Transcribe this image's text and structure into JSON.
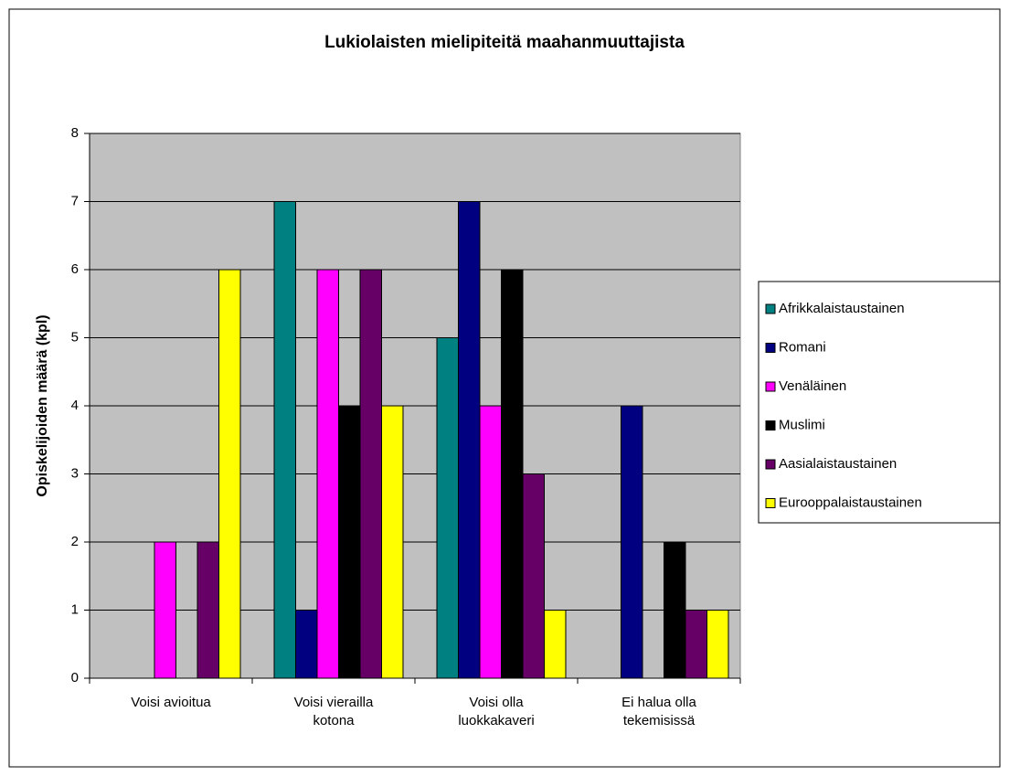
{
  "chart_data": {
    "type": "bar",
    "title": "Lukiolaisten mielipiteitä maahanmuuttajista",
    "y_label": "Opiskelijoiden määrä (kpl)",
    "categories": [
      "Voisi avioitua",
      "Voisi vierailla kotona",
      "Voisi olla luokkakaveri",
      "Ei halua olla tekemisissä"
    ],
    "series": [
      {
        "name": "Afrikkalaistaustainen",
        "color": "#008080",
        "values": [
          0,
          7,
          5,
          0
        ]
      },
      {
        "name": "Romani",
        "color": "#000080",
        "values": [
          0,
          1,
          7,
          4
        ]
      },
      {
        "name": "Venäläinen",
        "color": "#ff00ff",
        "values": [
          2,
          6,
          4,
          0
        ]
      },
      {
        "name": "Muslimi",
        "color": "#000000",
        "values": [
          0,
          4,
          6,
          2
        ]
      },
      {
        "name": "Aasialaistaustainen",
        "color": "#660066",
        "values": [
          2,
          6,
          3,
          1
        ]
      },
      {
        "name": "Eurooppalaistaustainen",
        "color": "#ffff00",
        "values": [
          6,
          4,
          1,
          1
        ]
      }
    ],
    "ylim": [
      0,
      8
    ],
    "yticks": [
      0,
      1,
      2,
      3,
      4,
      5,
      6,
      7,
      8
    ],
    "grid": true,
    "legend": "right"
  }
}
